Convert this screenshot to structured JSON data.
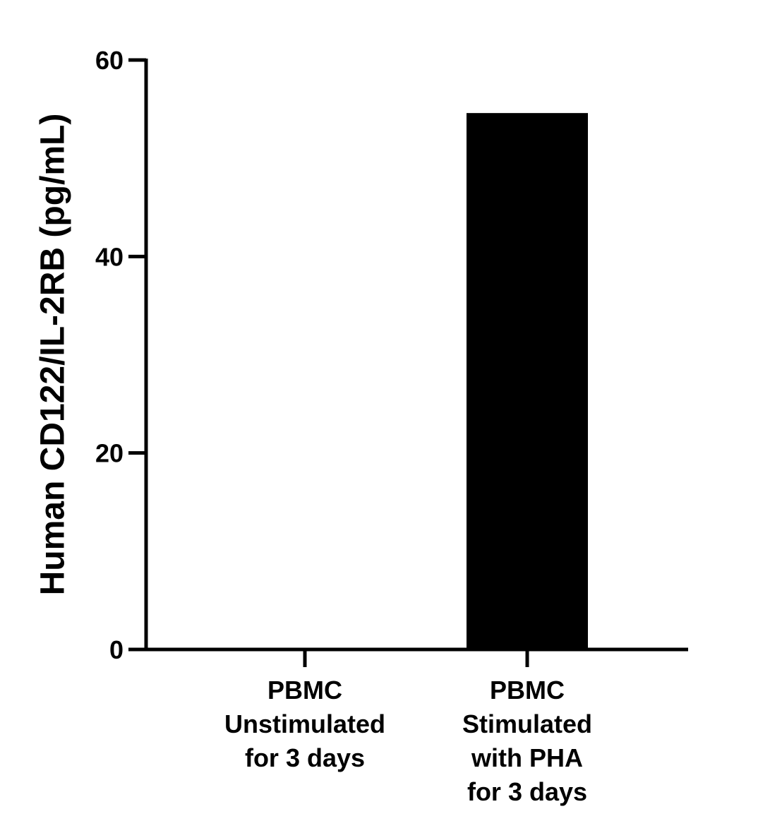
{
  "chart_data": {
    "type": "bar",
    "y_label": "Human CD122/IL-2RB (pg/mL)",
    "categories": [
      [
        "PBMC",
        "Unstimulated",
        "for 3 days"
      ],
      [
        "PBMC",
        "Stimulated",
        "with PHA",
        "for 3 days"
      ]
    ],
    "values": [
      0,
      54.6
    ],
    "color": "#000000",
    "ylim": [
      0,
      60
    ],
    "yticks": [
      0,
      20,
      40,
      60
    ]
  }
}
